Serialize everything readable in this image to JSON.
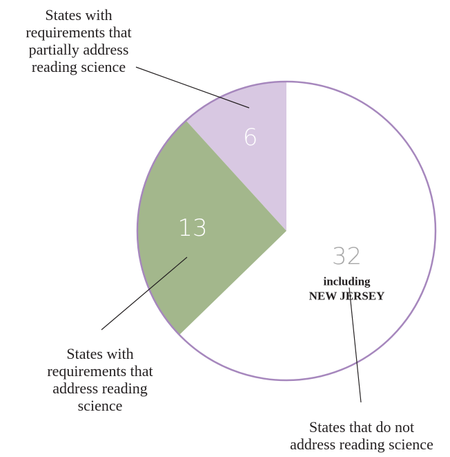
{
  "chart_data": {
    "type": "pie",
    "title": "",
    "start": "12 o'clock",
    "direction": "counter-clockwise",
    "slices": [
      {
        "value": 6,
        "label_lines": [
          "States with",
          "requirements that",
          "partially address",
          "reading science"
        ],
        "color": "#d8c8e2",
        "value_color": "#ffffff",
        "note_lines": []
      },
      {
        "value": 13,
        "label_lines": [
          "States with",
          "requirements that",
          "address reading",
          "science"
        ],
        "color": "#a3b78c",
        "value_color": "#ffffff",
        "note_lines": []
      },
      {
        "value": 32,
        "label_lines": [
          "States that do not",
          "address reading science"
        ],
        "color": "#ffffff",
        "value_color": "#a6a6a6",
        "note_lines": [
          "including",
          "NEW JERSEY"
        ]
      }
    ],
    "outline_color": "#a687bd",
    "leader_color": "#231f20"
  }
}
